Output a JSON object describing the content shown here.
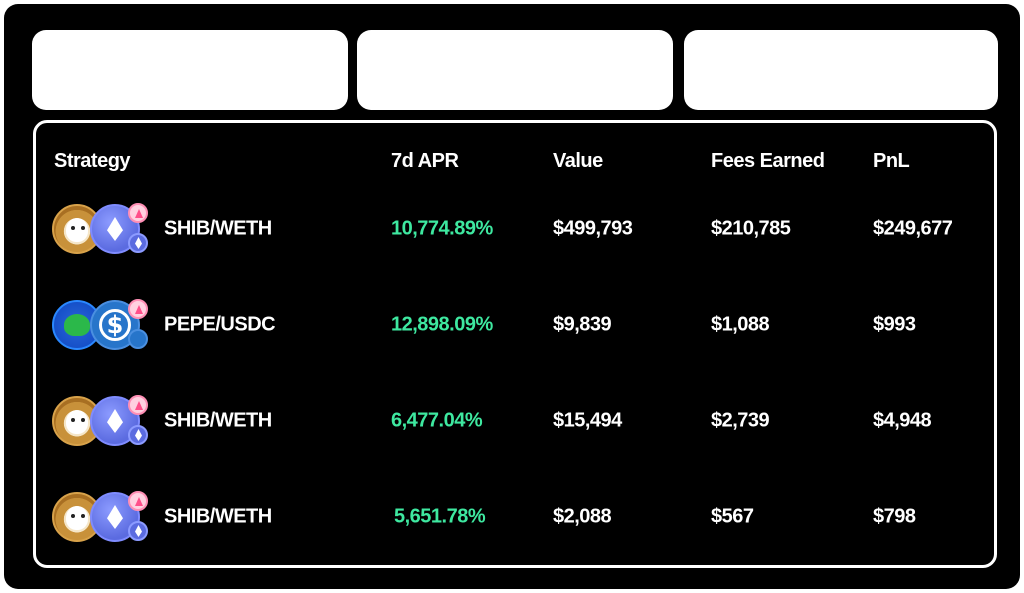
{
  "table": {
    "headers": {
      "strategy": "Strategy",
      "apr": "7d APR",
      "value": "Value",
      "fees_earned": "Fees Earned",
      "pnl": "PnL"
    },
    "rows": [
      {
        "pair": "SHIB/WETH",
        "apr": "10,774.89%",
        "value": "$499,793",
        "fees": "$210,785",
        "pnl": "$249,677",
        "token_a": "shib-icon",
        "token_b": "weth-icon",
        "badge_bottom": "eth-icon"
      },
      {
        "pair": "PEPE/USDC",
        "apr": "12,898.09%",
        "value": "$9,839",
        "fees": "$1,088",
        "pnl": "$993",
        "token_a": "pepe-icon",
        "token_b": "usdc-icon",
        "badge_bottom": "usdc-icon"
      },
      {
        "pair": "SHIB/WETH",
        "apr": "6,477.04%",
        "value": "$15,494",
        "fees": "$2,739",
        "pnl": "$4,948",
        "token_a": "shib-icon",
        "token_b": "weth-icon",
        "badge_bottom": "eth-icon"
      },
      {
        "pair": "SHIB/WETH",
        "apr": "5,651.78%",
        "value": "$2,088",
        "fees": "$567",
        "pnl": "$798",
        "token_a": "shib-icon",
        "token_b": "weth-icon",
        "badge_bottom": "eth-icon"
      }
    ]
  },
  "colors": {
    "apr_positive": "#3ee8a0",
    "background": "#000000",
    "card": "#ffffff"
  }
}
